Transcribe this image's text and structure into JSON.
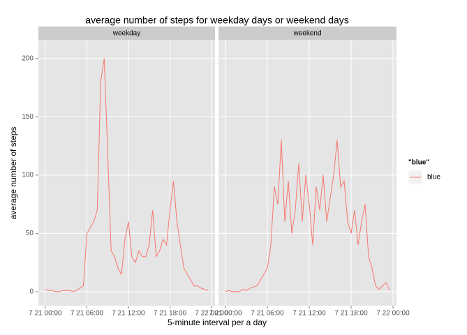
{
  "chart_data": {
    "type": "line",
    "title": "average number of steps for weekday days or weekend days",
    "xlabel": "5-minute interval per a day",
    "ylabel": "average number of steps",
    "legend_title": "\"blue\"",
    "x": [
      0,
      0.5,
      1,
      1.5,
      2,
      2.5,
      3,
      3.5,
      4,
      4.5,
      5,
      5.5,
      6,
      6.5,
      7,
      7.5,
      8,
      8.5,
      9,
      9.5,
      10,
      10.5,
      11,
      11.5,
      12,
      12.5,
      13,
      13.5,
      14,
      14.5,
      15,
      15.5,
      16,
      16.5,
      17,
      17.5,
      18,
      18.5,
      19,
      19.5,
      20,
      20.5,
      21,
      21.5,
      22,
      22.5,
      23,
      23.5
    ],
    "panels": [
      {
        "strip": "weekday",
        "series": [
          {
            "name": "blue",
            "color": "#F8766D",
            "values": [
              2,
              1,
              1,
              0,
              0,
              1,
              1,
              1,
              0,
              1,
              3,
              5,
              50,
              55,
              60,
              70,
              180,
              200,
              120,
              35,
              30,
              20,
              15,
              45,
              60,
              30,
              25,
              35,
              30,
              30,
              40,
              70,
              30,
              35,
              45,
              40,
              70,
              95,
              60,
              40,
              20,
              15,
              10,
              5,
              5,
              3,
              2,
              1
            ]
          }
        ]
      },
      {
        "strip": "weekend",
        "series": [
          {
            "name": "blue",
            "color": "#F8766D",
            "values": [
              0,
              1,
              0,
              0,
              0,
              2,
              1,
              3,
              4,
              5,
              10,
              15,
              20,
              40,
              90,
              75,
              130,
              60,
              95,
              50,
              70,
              110,
              60,
              100,
              75,
              40,
              90,
              70,
              100,
              60,
              80,
              100,
              130,
              90,
              95,
              60,
              50,
              70,
              40,
              60,
              75,
              30,
              20,
              5,
              2,
              5,
              8,
              1
            ]
          }
        ]
      }
    ],
    "xlim": [
      -1,
      24.5
    ],
    "xticks": [
      {
        "value": 0,
        "label": "7 21 00:00"
      },
      {
        "value": 6,
        "label": "7 21 06:00"
      },
      {
        "value": 12,
        "label": "7 21 12:00"
      },
      {
        "value": 18,
        "label": "7 21 18:00"
      },
      {
        "value": 24,
        "label": "7 22 00:00"
      }
    ],
    "ylim": [
      -12,
      216
    ],
    "yticks": [
      0,
      50,
      100,
      150,
      200
    ]
  }
}
